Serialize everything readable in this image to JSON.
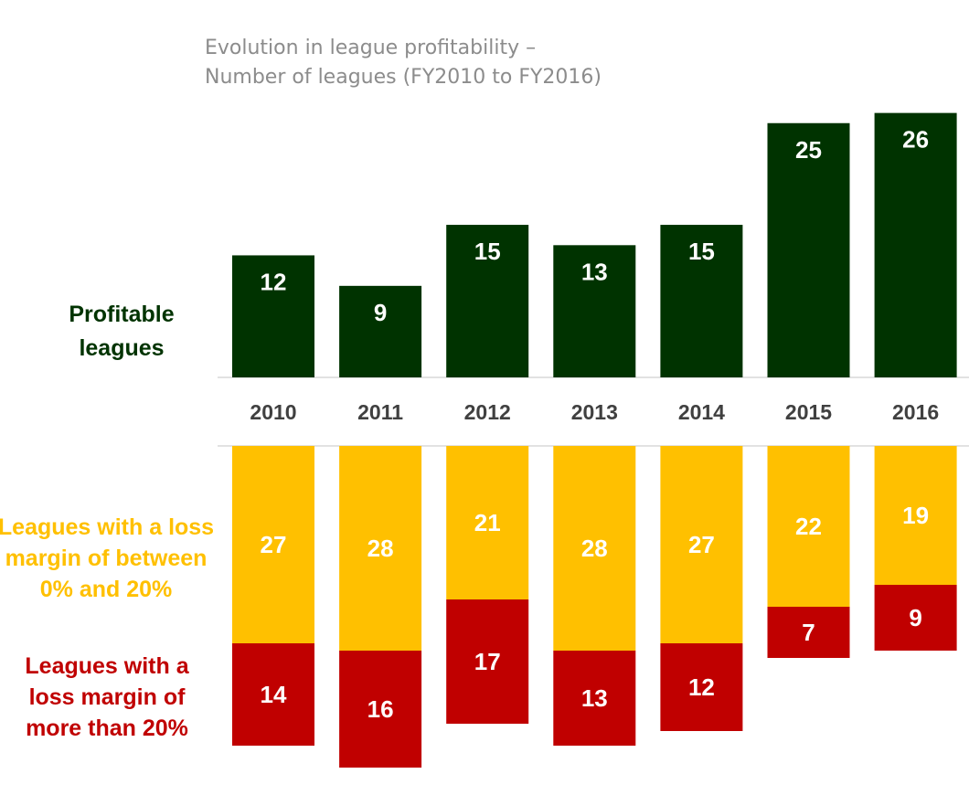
{
  "title": {
    "line1": "Evolution in league profitability –",
    "line2": "Number of leagues (FY2010 to FY2016)"
  },
  "labels": {
    "profitable": [
      "Profitable",
      "leagues"
    ],
    "loss_small": [
      "Leagues with a loss",
      "margin of between",
      "0% and 20%"
    ],
    "loss_large": [
      "Leagues with a",
      "loss margin of",
      "more than 20%"
    ]
  },
  "colors": {
    "profitable": "#003300",
    "loss_small": "#ffc000",
    "loss_large": "#c00000",
    "axis_line": "#d9d9d9",
    "year_text": "#404040",
    "title_text": "#8c8c8c"
  },
  "chart_data": {
    "type": "bar",
    "categories": [
      "2010",
      "2011",
      "2012",
      "2013",
      "2014",
      "2015",
      "2016"
    ],
    "series": [
      {
        "name": "Profitable leagues",
        "values": [
          12,
          9,
          15,
          13,
          15,
          25,
          26
        ]
      },
      {
        "name": "Leagues with a loss margin of between 0% and 20%",
        "values": [
          27,
          28,
          21,
          28,
          27,
          22,
          19
        ]
      },
      {
        "name": "Leagues with a loss margin of more than 20%",
        "values": [
          14,
          16,
          17,
          13,
          12,
          7,
          9
        ]
      }
    ]
  }
}
